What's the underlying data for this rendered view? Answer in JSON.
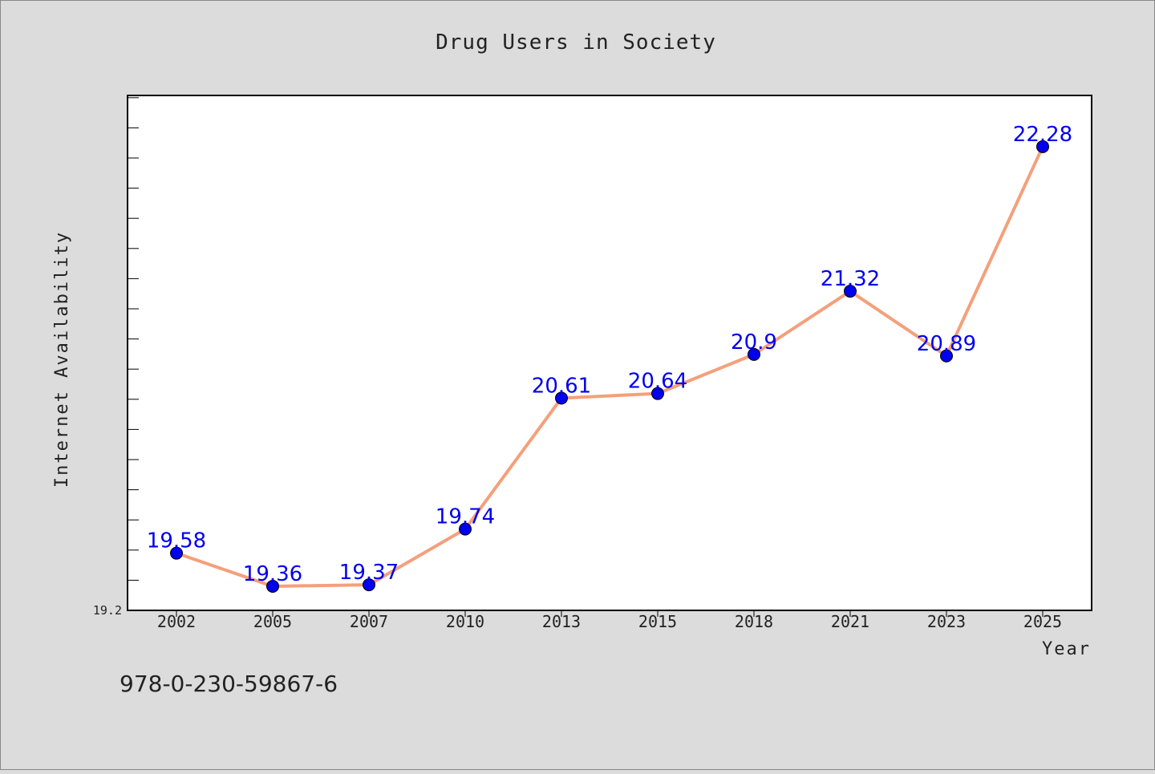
{
  "chart_data": {
    "type": "line",
    "title": "Drug Users in Society",
    "xlabel": "Year",
    "ylabel": "Internet Availability",
    "categories": [
      "2002",
      "2005",
      "2007",
      "2010",
      "2013",
      "2015",
      "2018",
      "2021",
      "2023",
      "2025"
    ],
    "series": [
      {
        "values": [
          19.58,
          19.36,
          19.37,
          19.74,
          20.61,
          20.64,
          20.9,
          21.32,
          20.89,
          22.28
        ],
        "labels": [
          "19.58",
          "19.36",
          "19.37",
          "19.74",
          "20.61",
          "20.64",
          "20.9",
          "21.32",
          "20.89",
          "22.28"
        ]
      }
    ],
    "ylim": [
      19.2,
      22.62
    ],
    "y_tick_labels": [
      "19.2"
    ],
    "grid": false,
    "legend": "none",
    "colors": {
      "line": "#f4a07c",
      "marker": "#0000ee",
      "data_label": "#0000ee",
      "background": "#dcdcdc",
      "plot_background": "#ffffff"
    }
  },
  "footer": {
    "isbn": "978-0-230-59867-6"
  }
}
